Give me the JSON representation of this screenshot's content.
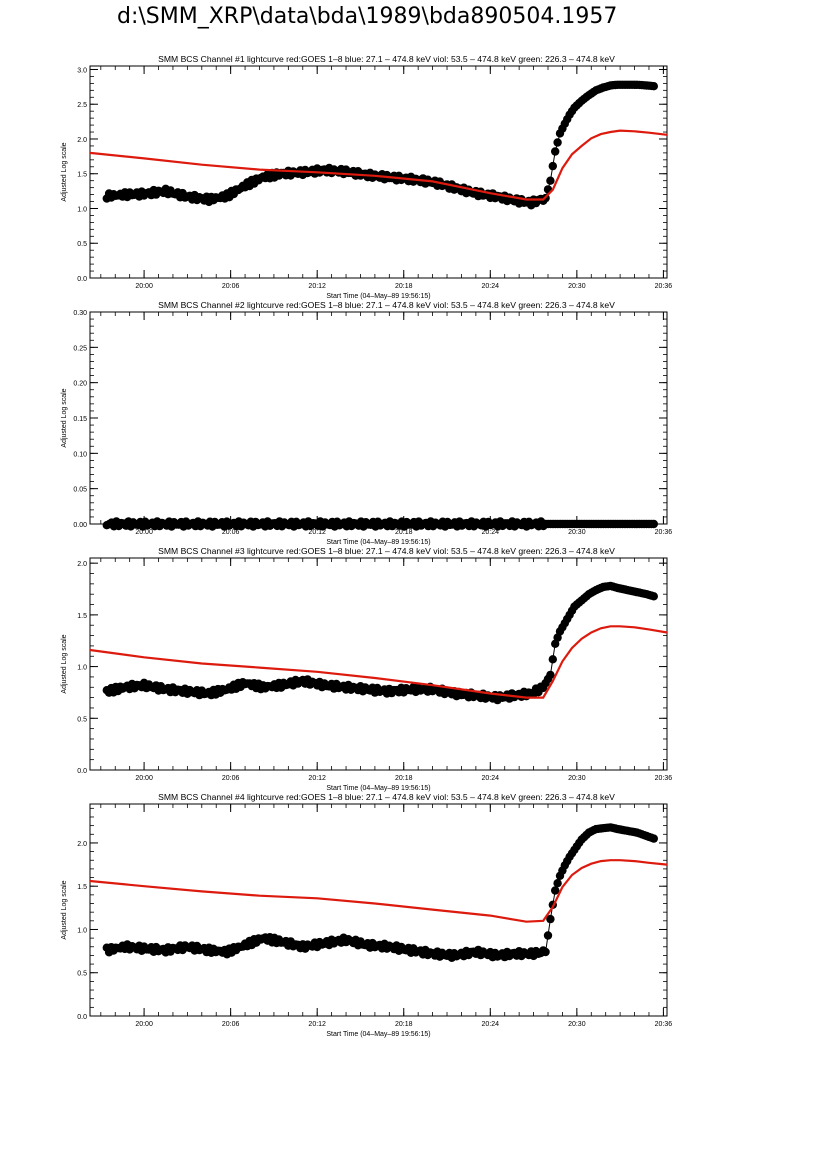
{
  "page": {
    "title": "d:\\SMM_XRP\\data\\bda\\1989\\bda890504.1957"
  },
  "colors": {
    "observed": "#000000",
    "goes": "#dd1a0e",
    "axis": "#000000"
  },
  "chart_data": [
    {
      "type": "scatter",
      "title": "SMM BCS Channel #1 lightcurve  red:GOES 1–8  blue: 27.1 – 474.8 keV  viol: 53.5 – 474.8 keV  green: 226.3 – 474.8 keV",
      "xlabel": "Start Time (04–May–89 19:56:15)",
      "ylabel": "Adjusted Log scale",
      "xlim": [
        "19:56:15",
        "20:36:15"
      ],
      "ylim": [
        0.0,
        3.05
      ],
      "x_ticks": [
        "20:00",
        "20:06",
        "20:12",
        "20:18",
        "20:24",
        "20:30",
        "20:36"
      ],
      "y_ticks": [
        "0.0",
        "0.5",
        "1.0",
        "1.5",
        "2.0",
        "2.5",
        "3.0"
      ],
      "series": [
        {
          "kind": "observed",
          "x": [
            "19:57:25",
            "19:58:40",
            "20:00:00",
            "20:01:30",
            "20:03:00",
            "20:04:30",
            "20:05:45",
            "20:07:00",
            "20:08:15",
            "20:09:30",
            "20:11:00",
            "20:12:30",
            "20:14:00",
            "20:15:30",
            "20:17:00",
            "20:18:30",
            "20:20:00",
            "20:21:30",
            "20:23:00",
            "20:24:30",
            "20:25:40",
            "20:26:50",
            "20:27:50",
            "20:28:10",
            "20:28:30",
            "20:28:50",
            "20:29:10",
            "20:29:30",
            "20:29:50",
            "20:30:20",
            "20:30:50",
            "20:31:20",
            "20:31:50",
            "20:32:20",
            "20:32:50",
            "20:33:30",
            "20:34:10",
            "20:34:50",
            "20:35:20"
          ],
          "values": [
            1.18,
            1.2,
            1.21,
            1.25,
            1.17,
            1.13,
            1.18,
            1.33,
            1.45,
            1.5,
            1.52,
            1.55,
            1.53,
            1.48,
            1.45,
            1.42,
            1.38,
            1.3,
            1.22,
            1.17,
            1.12,
            1.08,
            1.15,
            1.4,
            1.82,
            2.08,
            2.22,
            2.35,
            2.45,
            2.55,
            2.63,
            2.7,
            2.74,
            2.77,
            2.78,
            2.78,
            2.78,
            2.77,
            2.76
          ]
        },
        {
          "kind": "goes",
          "x": [
            "19:56:15",
            "20:00:00",
            "20:04:00",
            "20:08:00",
            "20:12:00",
            "20:16:00",
            "20:20:00",
            "20:24:00",
            "20:26:30",
            "20:27:40",
            "20:28:20",
            "20:29:00",
            "20:29:40",
            "20:30:20",
            "20:31:00",
            "20:31:40",
            "20:32:20",
            "20:33:00",
            "20:34:00",
            "20:35:00",
            "20:36:15"
          ],
          "values": [
            1.8,
            1.72,
            1.63,
            1.56,
            1.52,
            1.47,
            1.39,
            1.22,
            1.13,
            1.13,
            1.27,
            1.58,
            1.78,
            1.9,
            2.01,
            2.07,
            2.1,
            2.12,
            2.11,
            2.09,
            2.06
          ]
        }
      ]
    },
    {
      "type": "scatter",
      "title": "SMM BCS Channel #2 lightcurve  red:GOES 1–8  blue: 27.1 – 474.8 keV  viol: 53.5 – 474.8 keV  green: 226.3 – 474.8 keV",
      "xlabel": "Start Time (04–May–89 19:56:15)",
      "ylabel": "Adjusted Log scale",
      "xlim": [
        "19:56:15",
        "20:36:15"
      ],
      "ylim": [
        0.0,
        0.3
      ],
      "x_ticks": [
        "20:00",
        "20:06",
        "20:12",
        "20:18",
        "20:24",
        "20:30",
        "20:36"
      ],
      "y_ticks": [
        "0.00",
        "0.05",
        "0.10",
        "0.15",
        "0.20",
        "0.25",
        "0.30"
      ],
      "series": [
        {
          "kind": "observed",
          "x": [
            "19:57:25",
            "20:35:20"
          ],
          "values": [
            0.0,
            0.0
          ]
        }
      ]
    },
    {
      "type": "scatter",
      "title": "SMM BCS Channel #3 lightcurve  red:GOES 1–8  blue: 27.1 – 474.8 keV  viol: 53.5 – 474.8 keV  green: 226.3 – 474.8 keV",
      "xlabel": "Start Time (04–May–89 19:56:15)",
      "ylabel": "Adjusted Log scale",
      "xlim": [
        "19:56:15",
        "20:36:15"
      ],
      "ylim": [
        0.0,
        2.05
      ],
      "x_ticks": [
        "20:00",
        "20:06",
        "20:12",
        "20:18",
        "20:24",
        "20:30",
        "20:36"
      ],
      "y_ticks": [
        "0.0",
        "0.5",
        "1.0",
        "1.5",
        "2.0"
      ],
      "series": [
        {
          "kind": "observed",
          "x": [
            "19:57:25",
            "19:58:40",
            "20:00:00",
            "20:01:30",
            "20:03:00",
            "20:04:30",
            "20:05:45",
            "20:07:00",
            "20:08:15",
            "20:09:30",
            "20:11:00",
            "20:12:30",
            "20:14:00",
            "20:15:30",
            "20:17:00",
            "20:18:30",
            "20:20:00",
            "20:21:30",
            "20:23:00",
            "20:24:30",
            "20:25:40",
            "20:26:50",
            "20:27:40",
            "20:28:10",
            "20:28:30",
            "20:28:50",
            "20:29:10",
            "20:29:30",
            "20:29:50",
            "20:30:20",
            "20:30:50",
            "20:31:20",
            "20:31:50",
            "20:32:20",
            "20:32:50",
            "20:33:30",
            "20:34:10",
            "20:34:50",
            "20:35:20"
          ],
          "values": [
            0.76,
            0.8,
            0.82,
            0.78,
            0.76,
            0.74,
            0.78,
            0.84,
            0.8,
            0.82,
            0.86,
            0.82,
            0.8,
            0.78,
            0.76,
            0.78,
            0.78,
            0.74,
            0.72,
            0.7,
            0.72,
            0.74,
            0.8,
            0.92,
            1.22,
            1.34,
            1.42,
            1.5,
            1.58,
            1.64,
            1.7,
            1.74,
            1.77,
            1.78,
            1.76,
            1.74,
            1.72,
            1.7,
            1.68
          ]
        },
        {
          "kind": "goes",
          "x": [
            "19:56:15",
            "20:00:00",
            "20:04:00",
            "20:08:00",
            "20:12:00",
            "20:16:00",
            "20:20:00",
            "20:24:00",
            "20:26:30",
            "20:27:40",
            "20:28:20",
            "20:29:00",
            "20:29:40",
            "20:30:20",
            "20:31:00",
            "20:31:40",
            "20:32:20",
            "20:33:00",
            "20:34:00",
            "20:35:00",
            "20:36:15"
          ],
          "values": [
            1.16,
            1.09,
            1.03,
            0.99,
            0.95,
            0.89,
            0.82,
            0.74,
            0.7,
            0.7,
            0.86,
            1.05,
            1.18,
            1.27,
            1.33,
            1.37,
            1.39,
            1.39,
            1.38,
            1.36,
            1.33
          ]
        }
      ]
    },
    {
      "type": "scatter",
      "title": "SMM BCS Channel #4 lightcurve  red:GOES 1–8  blue: 27.1 – 474.8 keV  viol: 53.5 – 474.8 keV  green: 226.3 – 474.8 keV",
      "xlabel": "Start Time (04–May–89 19:56:15)",
      "ylabel": "Adjusted Log scale",
      "xlim": [
        "19:56:15",
        "20:36:15"
      ],
      "ylim": [
        0.0,
        2.45
      ],
      "x_ticks": [
        "20:00",
        "20:06",
        "20:12",
        "20:18",
        "20:24",
        "20:30",
        "20:36"
      ],
      "y_ticks": [
        "0.0",
        "0.5",
        "1.0",
        "1.5",
        "2.0"
      ],
      "series": [
        {
          "kind": "observed",
          "x": [
            "19:57:25",
            "19:58:40",
            "20:00:00",
            "20:01:30",
            "20:03:00",
            "20:04:30",
            "20:05:45",
            "20:07:00",
            "20:08:15",
            "20:09:30",
            "20:11:00",
            "20:12:30",
            "20:14:00",
            "20:15:30",
            "20:17:00",
            "20:18:30",
            "20:20:00",
            "20:21:30",
            "20:23:00",
            "20:24:30",
            "20:25:40",
            "20:26:50",
            "20:27:50",
            "20:28:10",
            "20:28:30",
            "20:28:50",
            "20:29:10",
            "20:29:30",
            "20:29:50",
            "20:30:20",
            "20:30:50",
            "20:31:20",
            "20:31:50",
            "20:32:20",
            "20:32:50",
            "20:33:30",
            "20:34:10",
            "20:34:50",
            "20:35:20"
          ],
          "values": [
            0.76,
            0.8,
            0.78,
            0.76,
            0.8,
            0.76,
            0.74,
            0.82,
            0.9,
            0.86,
            0.8,
            0.84,
            0.88,
            0.82,
            0.8,
            0.76,
            0.72,
            0.7,
            0.74,
            0.7,
            0.72,
            0.72,
            0.74,
            1.12,
            1.45,
            1.62,
            1.74,
            1.84,
            1.92,
            2.04,
            2.12,
            2.16,
            2.17,
            2.18,
            2.16,
            2.14,
            2.12,
            2.08,
            2.05
          ]
        },
        {
          "kind": "goes",
          "x": [
            "19:56:15",
            "20:00:00",
            "20:04:00",
            "20:08:00",
            "20:12:00",
            "20:16:00",
            "20:20:00",
            "20:24:00",
            "20:26:30",
            "20:27:40",
            "20:28:20",
            "20:29:00",
            "20:29:40",
            "20:30:20",
            "20:31:00",
            "20:31:40",
            "20:32:20",
            "20:33:00",
            "20:34:00",
            "20:35:00",
            "20:36:15"
          ],
          "values": [
            1.56,
            1.5,
            1.44,
            1.39,
            1.36,
            1.3,
            1.23,
            1.16,
            1.09,
            1.1,
            1.26,
            1.49,
            1.63,
            1.71,
            1.76,
            1.79,
            1.8,
            1.8,
            1.79,
            1.77,
            1.75
          ]
        }
      ]
    }
  ]
}
